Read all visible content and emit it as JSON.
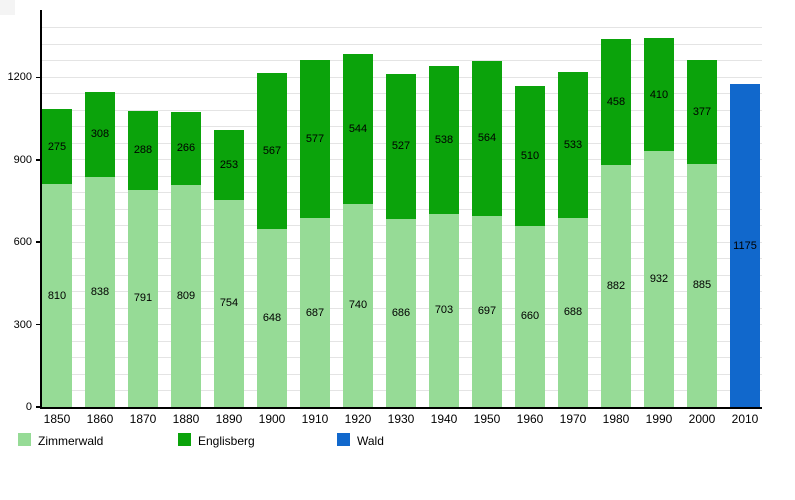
{
  "chart_data": {
    "type": "bar",
    "stacked": true,
    "title": "",
    "xlabel": "",
    "ylabel": "",
    "categories": [
      "1850",
      "1860",
      "1870",
      "1880",
      "1890",
      "1900",
      "1910",
      "1920",
      "1930",
      "1940",
      "1950",
      "1960",
      "1970",
      "1980",
      "1990",
      "2000",
      "2010"
    ],
    "series": [
      {
        "name": "Zimmerwald",
        "color": "#96db96",
        "values": [
          810,
          838,
          791,
          809,
          754,
          648,
          687,
          740,
          686,
          703,
          697,
          660,
          688,
          882,
          932,
          885,
          null
        ]
      },
      {
        "name": "Englisberg",
        "color": "#0ba30b",
        "values": [
          275,
          308,
          288,
          266,
          253,
          567,
          577,
          544,
          527,
          538,
          564,
          510,
          533,
          458,
          410,
          377,
          null
        ]
      },
      {
        "name": "Wald",
        "color": "#1168cc",
        "values": [
          null,
          null,
          null,
          null,
          null,
          null,
          null,
          null,
          null,
          null,
          null,
          null,
          null,
          null,
          null,
          null,
          1175
        ]
      }
    ],
    "y_axis": {
      "ticks": [
        0,
        300,
        600,
        900,
        1200
      ],
      "ylim": [
        0,
        1445
      ],
      "minor_grid_step": 60,
      "minor_grid_max": 1380
    },
    "grid": "on",
    "legend_position": "bottom",
    "legend": [
      {
        "label": "Zimmerwald",
        "color": "#96db96"
      },
      {
        "label": "Englisberg",
        "color": "#0ba30b"
      },
      {
        "label": "Wald",
        "color": "#1168cc"
      }
    ]
  }
}
